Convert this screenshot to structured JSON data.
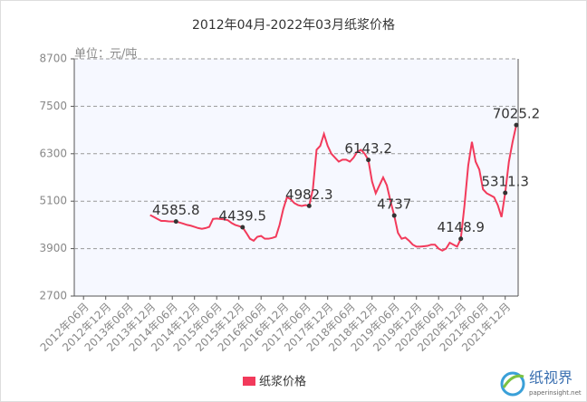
{
  "chart_data": {
    "type": "line",
    "title": "2012年04月-2022年03月纸浆价格",
    "y_label": "单位：元/吨",
    "categories": [
      null,
      null,
      "2012年06月",
      null,
      null,
      null,
      null,
      null,
      "2012年12月",
      null,
      null,
      null,
      null,
      null,
      "2013年06月",
      null,
      null,
      null,
      null,
      null,
      "2013年12月",
      null,
      null,
      null,
      null,
      null,
      "2014年06月",
      null,
      null,
      null,
      null,
      null,
      "2014年12月",
      null,
      null,
      null,
      null,
      null,
      "2015年06月",
      null,
      null,
      null,
      null,
      null,
      "2015年12月",
      null,
      null,
      null,
      null,
      null,
      "2016年06月",
      null,
      null,
      null,
      null,
      null,
      "2016年12月",
      null,
      null,
      null,
      null,
      null,
      "2017年06月",
      null,
      null,
      null,
      null,
      null,
      "2017年12月",
      null,
      null,
      null,
      null,
      null,
      "2018年06月",
      null,
      null,
      null,
      null,
      null,
      "2018年12月",
      null,
      null,
      null,
      null,
      null,
      "2019年06月",
      null,
      null,
      null,
      null,
      null,
      "2019年12月",
      null,
      null,
      null,
      null,
      null,
      "2020年06月",
      null,
      null,
      null,
      null,
      null,
      "2020年12月",
      null,
      null,
      null,
      null,
      null,
      "2021年06月",
      null,
      null,
      null,
      null,
      null,
      "2021年12月",
      null,
      null,
      null
    ],
    "series": [
      {
        "name": "纸浆价格",
        "color": "#f23a5b",
        "values": [
          null,
          null,
          null,
          null,
          null,
          null,
          null,
          null,
          null,
          null,
          null,
          null,
          null,
          null,
          null,
          null,
          null,
          null,
          null,
          null,
          4750,
          4700,
          4650,
          4600,
          4600,
          4590,
          4586,
          4585.8,
          4560,
          4530,
          4500,
          4480,
          4450,
          4420,
          4400,
          4420,
          4450,
          4650,
          4660,
          4650,
          4640,
          4620,
          4550,
          4500,
          4470,
          4439.5,
          4300,
          4150,
          4100,
          4200,
          4220,
          4150,
          4150,
          4170,
          4200,
          4500,
          4900,
          5200,
          5150,
          5050,
          5000,
          4980,
          5000,
          4982.3,
          5400,
          6400,
          6500,
          6800,
          6500,
          6300,
          6200,
          6100,
          6150,
          6150,
          6100,
          6200,
          6350,
          6400,
          6300,
          6143.2,
          5600,
          5300,
          5500,
          5700,
          5500,
          5100,
          4737,
          4300,
          4150,
          4180,
          4100,
          4000,
          3950,
          3950,
          3960,
          3970,
          4000,
          4000,
          3900,
          3850,
          3900,
          4050,
          4000,
          3950,
          4148.9,
          5000,
          6000,
          6600,
          6100,
          5900,
          5400,
          5300,
          5250,
          5200,
          5000,
          4700,
          5311.3,
          6100,
          6600,
          7025.2
        ],
        "value_labels": [
          null,
          null,
          null,
          null,
          null,
          null,
          null,
          null,
          null,
          null,
          null,
          null,
          null,
          null,
          null,
          null,
          null,
          null,
          null,
          null,
          null,
          null,
          null,
          null,
          null,
          null,
          null,
          "4585.8",
          null,
          null,
          null,
          null,
          null,
          null,
          null,
          null,
          null,
          null,
          null,
          null,
          null,
          null,
          null,
          null,
          null,
          "4439.5",
          null,
          null,
          null,
          null,
          null,
          null,
          null,
          null,
          null,
          null,
          null,
          null,
          null,
          null,
          null,
          null,
          null,
          "4982.3",
          null,
          null,
          null,
          null,
          null,
          null,
          null,
          null,
          null,
          null,
          null,
          null,
          null,
          null,
          null,
          "6143.2",
          null,
          null,
          null,
          null,
          null,
          null,
          "4737",
          null,
          null,
          null,
          null,
          null,
          null,
          null,
          null,
          null,
          null,
          null,
          null,
          null,
          null,
          null,
          null,
          null,
          "4148.9",
          null,
          null,
          null,
          null,
          null,
          null,
          null,
          null,
          null,
          null,
          null,
          "5311.3",
          null,
          null,
          "7025.2"
        ]
      }
    ],
    "ylim": [
      2700,
      8700
    ],
    "yticks": [
      2700,
      3900,
      5100,
      6300,
      7500,
      8700
    ],
    "grid": true,
    "legend": "bottom",
    "logo": {
      "name": "纸视界",
      "url": "paperinsight.net"
    }
  }
}
